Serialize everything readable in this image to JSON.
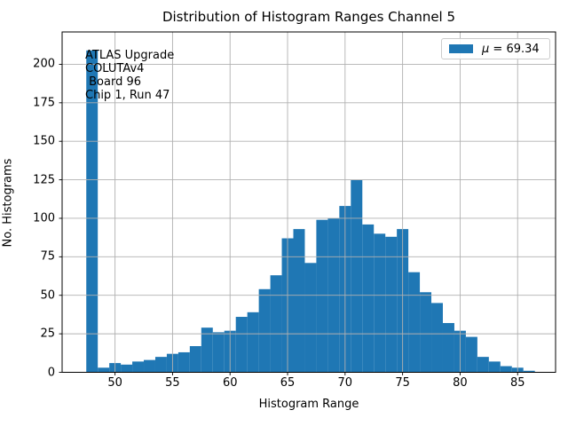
{
  "chart_data": {
    "type": "bar",
    "subtype": "histogram",
    "title": "Distribution of Histogram Ranges Channel 5",
    "xlabel": "Histogram Range",
    "ylabel": "No. Histograms",
    "bin_width": 1,
    "bin_centers": [
      48,
      49,
      50,
      51,
      52,
      53,
      54,
      55,
      56,
      57,
      58,
      59,
      60,
      61,
      62,
      63,
      64,
      65,
      66,
      67,
      68,
      69,
      70,
      71,
      72,
      73,
      74,
      75,
      76,
      77,
      78,
      79,
      80,
      81,
      82,
      83,
      84,
      85,
      86
    ],
    "values": [
      209,
      3,
      6,
      5,
      7,
      8,
      10,
      12,
      13,
      17,
      29,
      26,
      27,
      36,
      39,
      54,
      63,
      87,
      93,
      71,
      99,
      100,
      108,
      125,
      96,
      90,
      88,
      93,
      65,
      52,
      45,
      32,
      27,
      23,
      10,
      7,
      4,
      3,
      1
    ],
    "x_ticks": [
      50,
      55,
      60,
      65,
      70,
      75,
      80,
      85
    ],
    "y_ticks": [
      0,
      25,
      50,
      75,
      100,
      125,
      150,
      175,
      200
    ],
    "xlim": [
      45.4,
      88.3
    ],
    "ylim": [
      0,
      221
    ],
    "grid": true,
    "grid_color": "#b0b0b0",
    "bar_color": "#1f77b4",
    "legend": {
      "position": "upper right",
      "symbol": "μ",
      "value_text": " = 69.34",
      "full_label": "μ = 69.34",
      "swatch_color": "#1f77b4"
    },
    "annotation_lines": [
      "ATLAS Upgrade",
      "COLUTAv4",
      " Board 96",
      "Chip 1, Run 47"
    ]
  }
}
